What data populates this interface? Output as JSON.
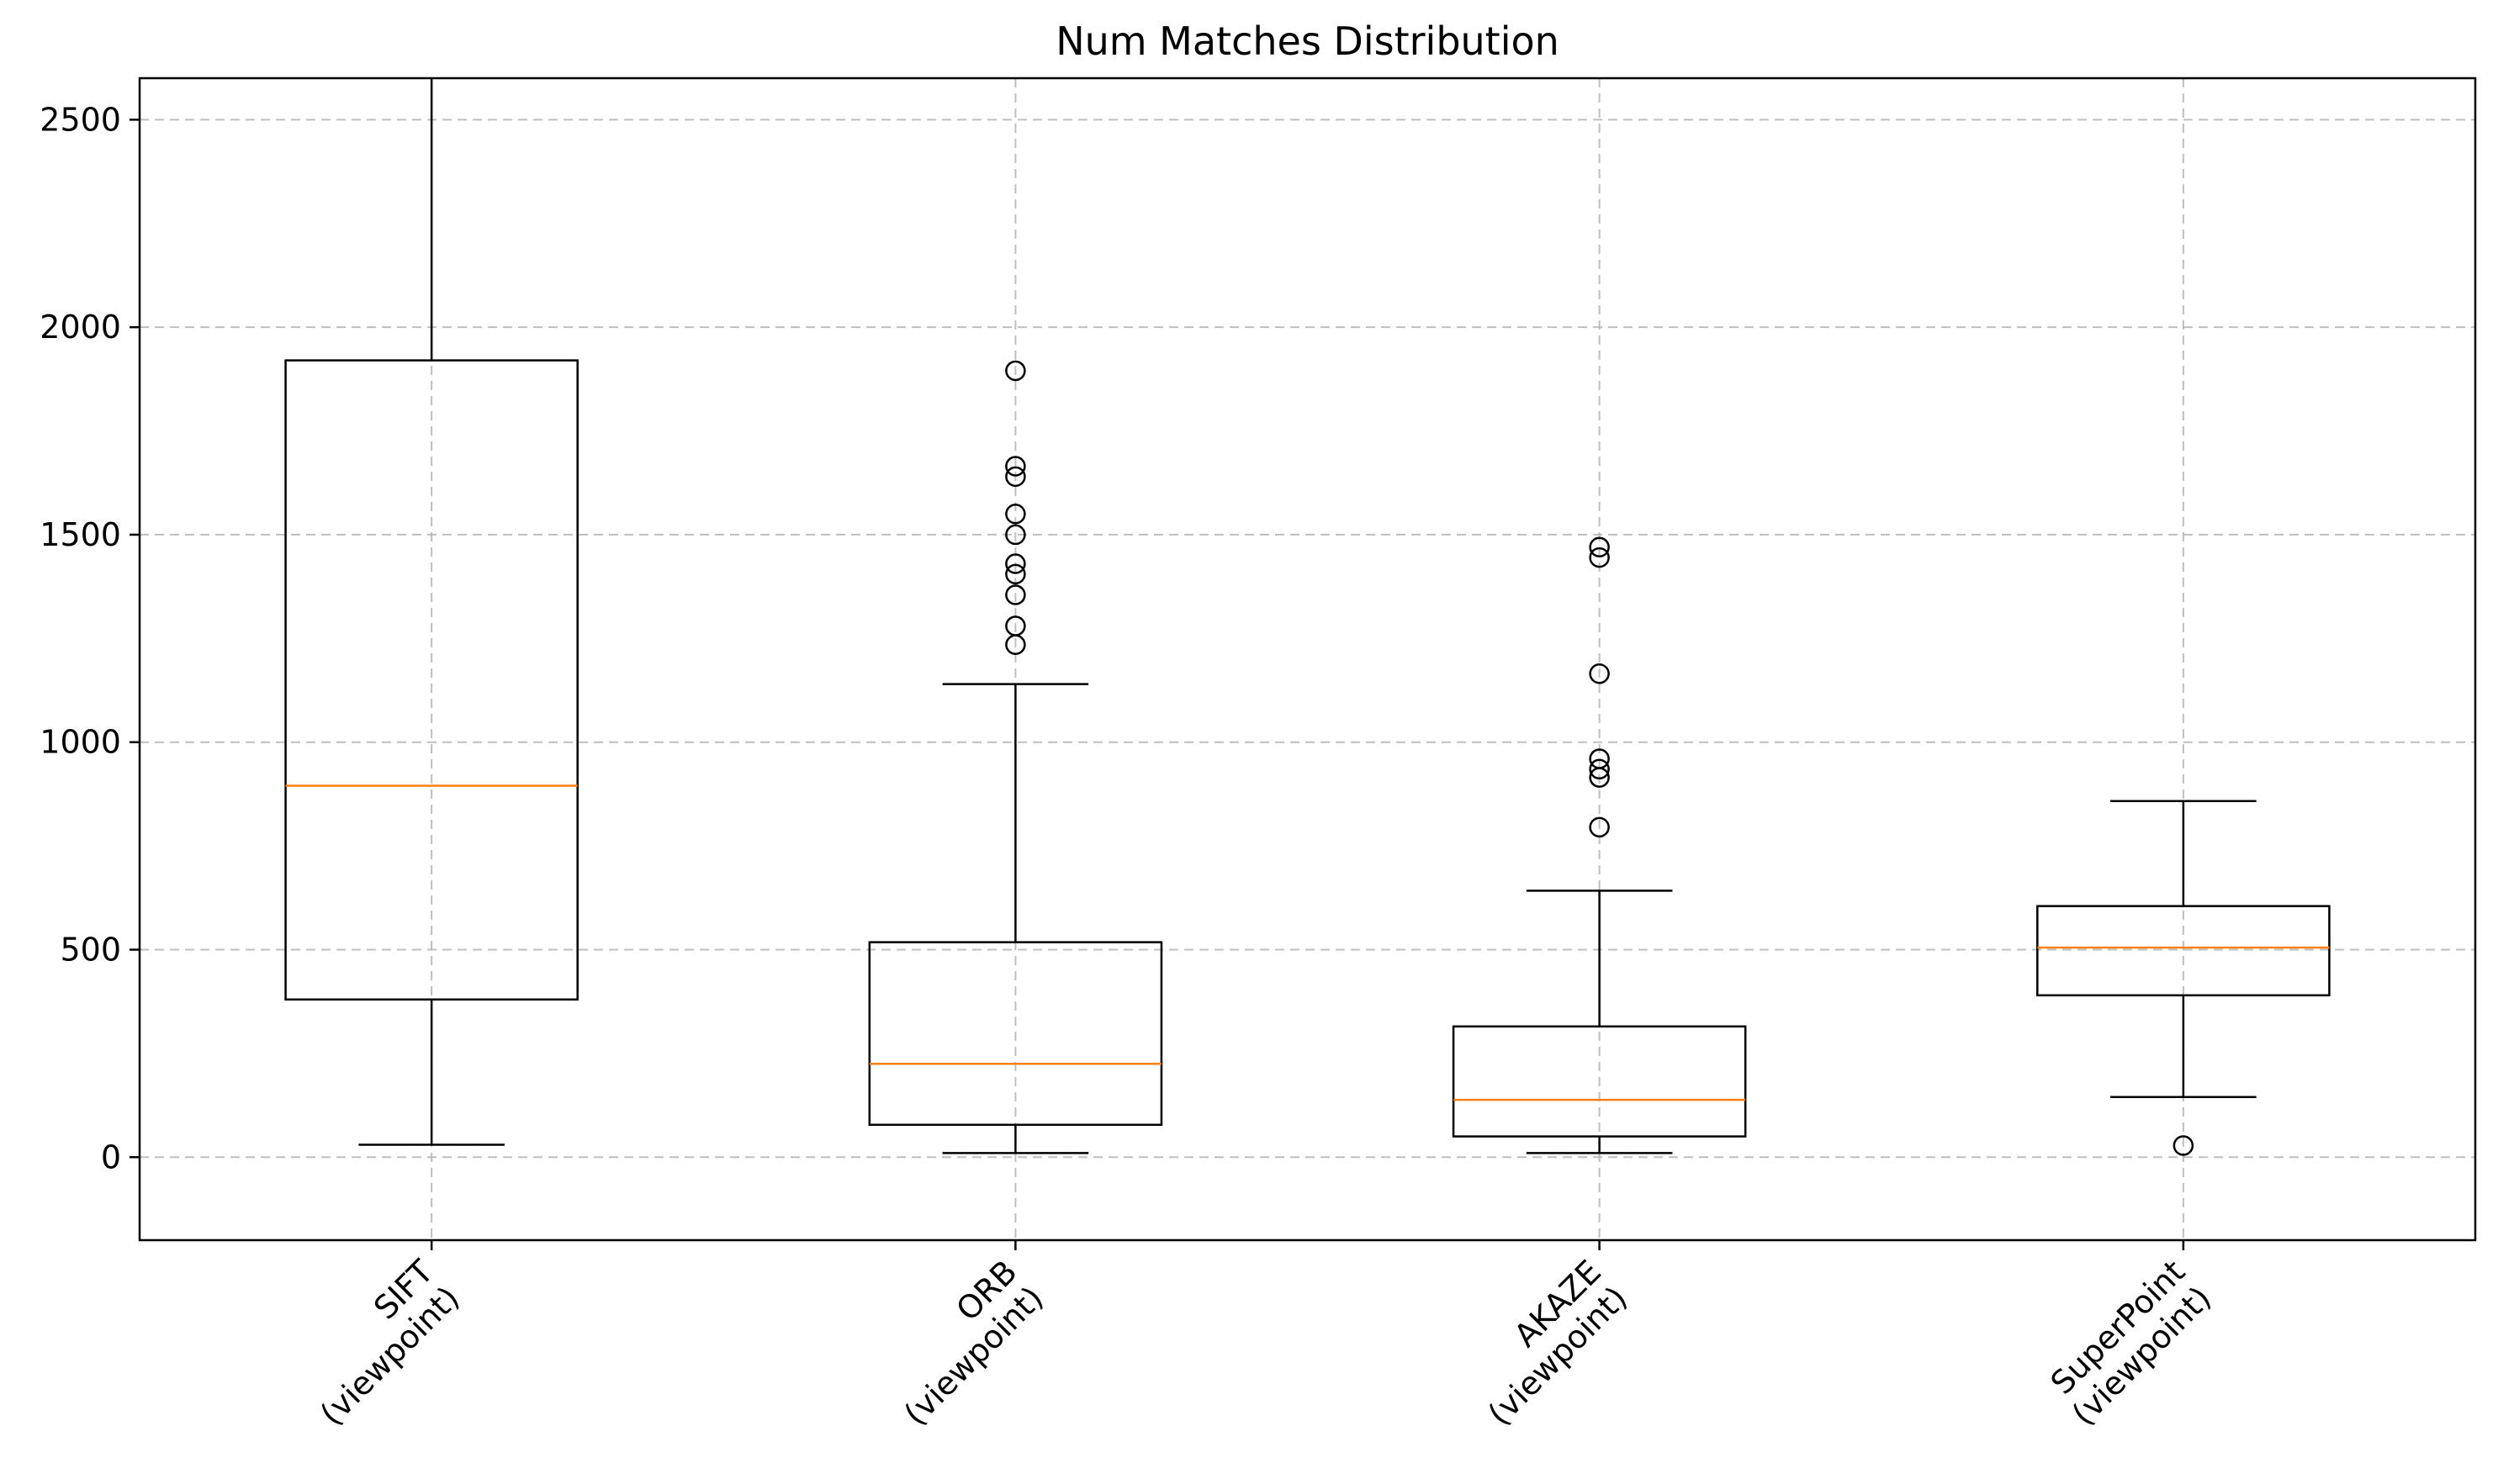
{
  "chart_data": {
    "type": "box",
    "title": "Num Matches Distribution",
    "xlabel": "",
    "ylabel": "",
    "ylim": [
      -200,
      2600
    ],
    "yticks": [
      0,
      500,
      1000,
      1500,
      2000,
      2500
    ],
    "grid": true,
    "colors": {
      "box": "#000000",
      "median": "#ff7f0e",
      "grid": "#b0b0b0"
    },
    "categories": [
      {
        "line1": "SIFT",
        "line2": "(viewpoint)"
      },
      {
        "line1": "ORB",
        "line2": "(viewpoint)"
      },
      {
        "line1": "AKAZE",
        "line2": "(viewpoint)"
      },
      {
        "line1": "SuperPoint",
        "line2": "(viewpoint)"
      }
    ],
    "boxes": [
      {
        "whisker_low": 30,
        "q1": 380,
        "median": 895,
        "q3": 1920,
        "whisker_high": 2600,
        "outliers": []
      },
      {
        "whisker_low": 10,
        "q1": 78,
        "median": 225,
        "q3": 518,
        "whisker_high": 1140,
        "outliers": [
          1235,
          1280,
          1355,
          1405,
          1430,
          1500,
          1550,
          1640,
          1665,
          1895
        ]
      },
      {
        "whisker_low": 10,
        "q1": 50,
        "median": 138,
        "q3": 315,
        "whisker_high": 642,
        "outliers": [
          795,
          915,
          935,
          960,
          1165,
          1445,
          1470
        ]
      },
      {
        "whisker_low": 145,
        "q1": 390,
        "median": 505,
        "q3": 605,
        "whisker_high": 858,
        "outliers": [
          28
        ]
      }
    ]
  }
}
